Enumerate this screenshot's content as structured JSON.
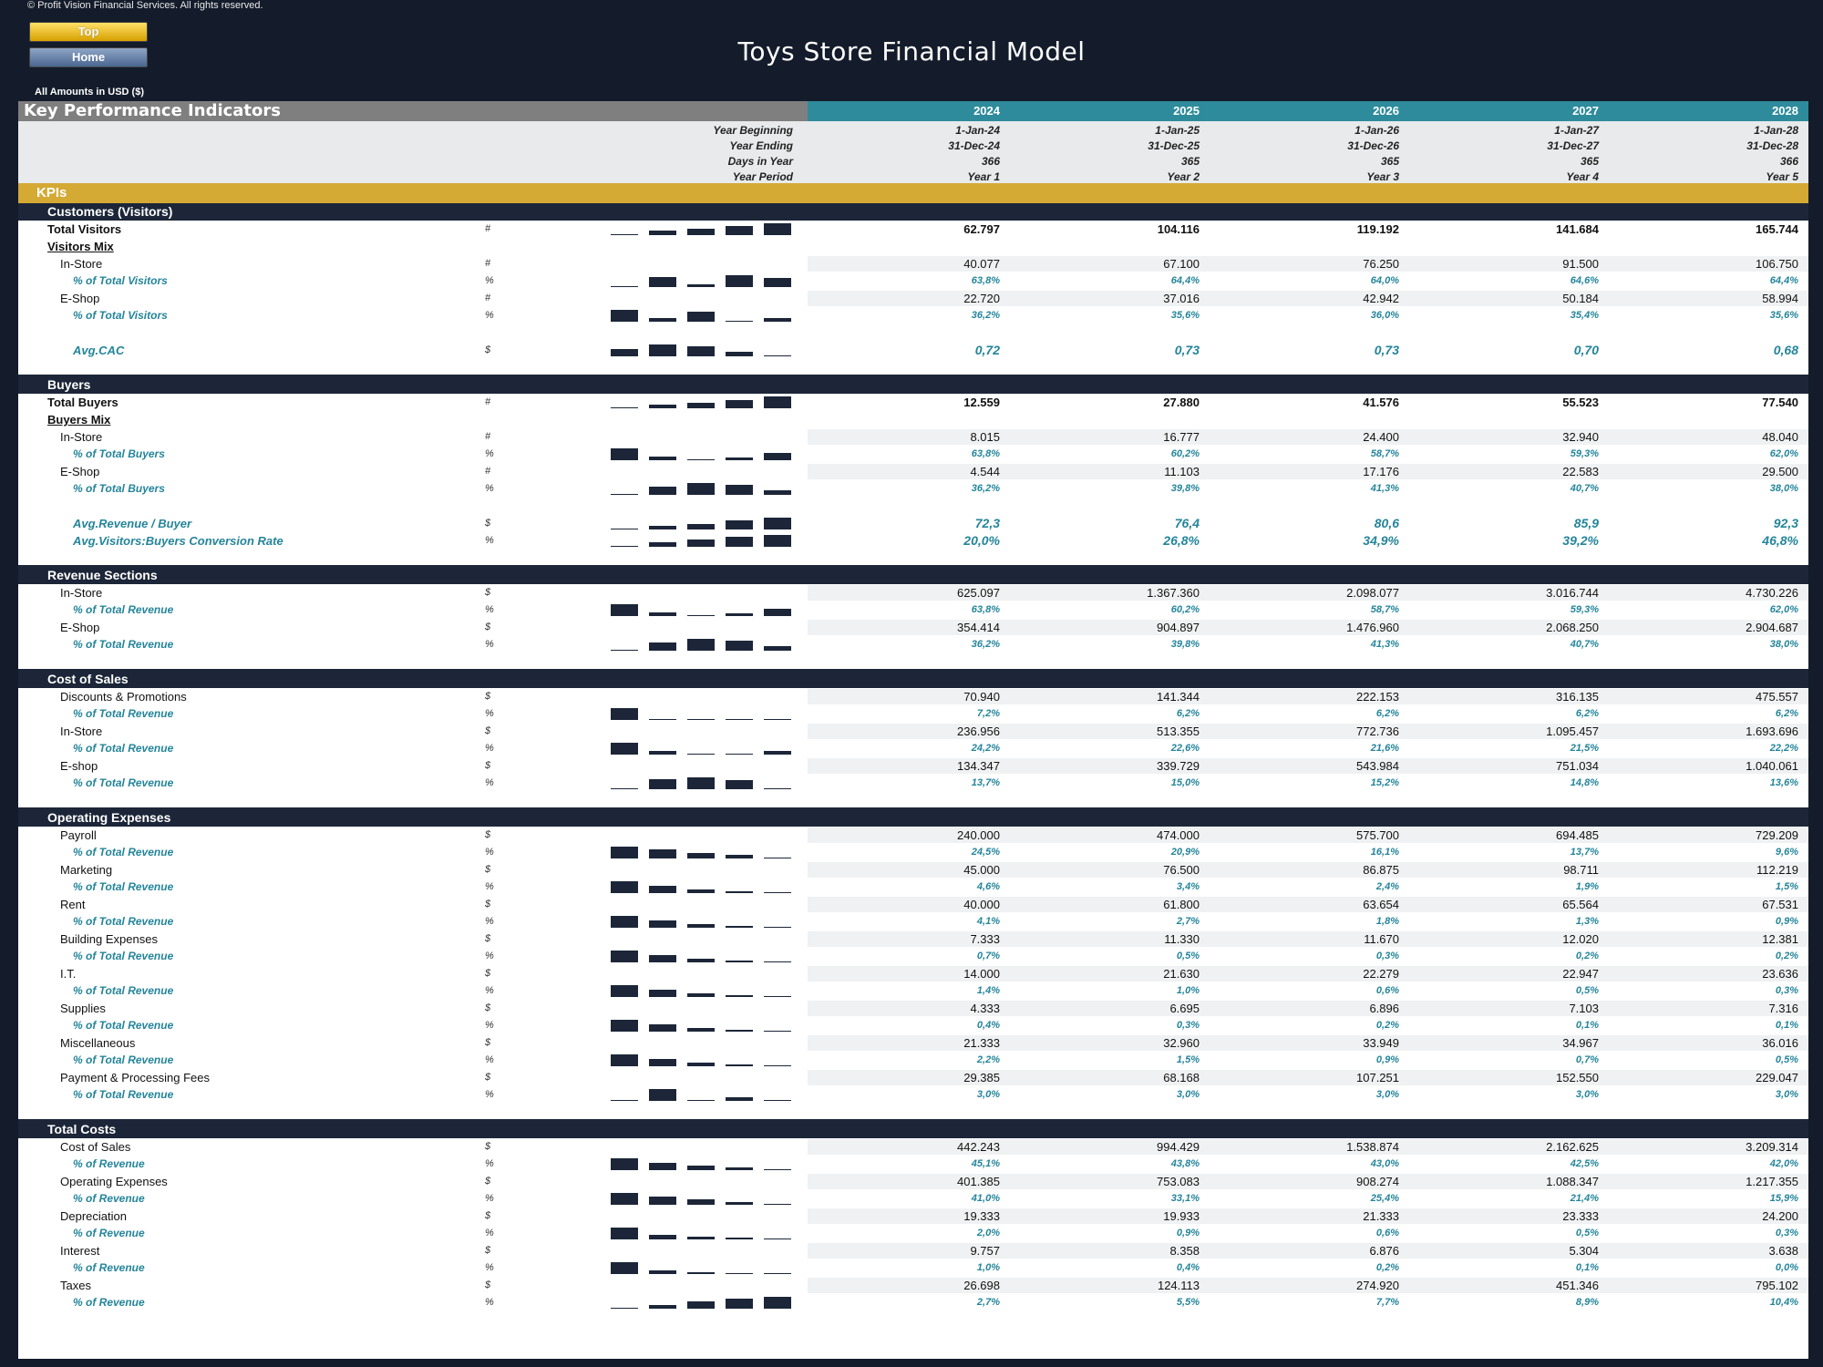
{
  "copyright": "© Profit Vision Financial Services. All rights reserved.",
  "nav": {
    "top_label": "Top",
    "home_label": "Home"
  },
  "app_title": "Toys Store Financial Model",
  "currency_note": "All Amounts in  USD ($)",
  "kpi_title": "Key Performance Indicators",
  "years": [
    "2024",
    "2025",
    "2026",
    "2027",
    "2028"
  ],
  "meta": {
    "labels": [
      "Year Beginning",
      "Year Ending",
      "Days in Year",
      "Year Period"
    ],
    "rows": [
      [
        "1-Jan-24",
        "1-Jan-25",
        "1-Jan-26",
        "1-Jan-27",
        "1-Jan-28"
      ],
      [
        "31-Dec-24",
        "31-Dec-25",
        "31-Dec-26",
        "31-Dec-27",
        "31-Dec-28"
      ],
      [
        "366",
        "365",
        "365",
        "365",
        "366"
      ],
      [
        "Year 1",
        "Year 2",
        "Year 3",
        "Year 4",
        "Year 5"
      ]
    ]
  },
  "kpis_label": "KPIs",
  "rows": [
    {
      "type": "sec",
      "label": "Customers (Visitors)"
    },
    {
      "type": "bold",
      "label": "Total Visitors",
      "unit": "#",
      "values": [
        "62.797",
        "104.116",
        "119.192",
        "141.684",
        "165.744"
      ],
      "spark": [
        0.1,
        0.35,
        0.5,
        0.7,
        0.95
      ]
    },
    {
      "type": "head",
      "label": "Visitors Mix"
    },
    {
      "type": "item",
      "label": "In-Store",
      "unit": "#",
      "values": [
        "40.077",
        "67.100",
        "76.250",
        "91.500",
        "106.750"
      ]
    },
    {
      "type": "pct",
      "label": "% of Total Visitors",
      "unit": "%",
      "values": [
        "63,8%",
        "64,4%",
        "64,0%",
        "64,6%",
        "64,4%"
      ],
      "spark": [
        0.1,
        0.75,
        0.2,
        0.95,
        0.7
      ]
    },
    {
      "type": "item",
      "label": "E-Shop",
      "unit": "#",
      "values": [
        "22.720",
        "37.016",
        "42.942",
        "50.184",
        "58.994"
      ]
    },
    {
      "type": "pct",
      "label": "% of Total Visitors",
      "unit": "%",
      "values": [
        "36,2%",
        "35,6%",
        "36,0%",
        "35,4%",
        "35,6%"
      ],
      "spark": [
        0.95,
        0.3,
        0.8,
        0.1,
        0.3
      ]
    },
    {
      "type": "blank"
    },
    {
      "type": "avg",
      "label": "Avg.CAC",
      "unit": "$",
      "values": [
        "0,72",
        "0,73",
        "0,73",
        "0,70",
        "0,68"
      ],
      "spark": [
        0.6,
        0.95,
        0.8,
        0.35,
        0.1
      ]
    },
    {
      "type": "blank"
    },
    {
      "type": "sec",
      "label": "Buyers"
    },
    {
      "type": "bold",
      "label": "Total Buyers",
      "unit": "#",
      "values": [
        "12.559",
        "27.880",
        "41.576",
        "55.523",
        "77.540"
      ],
      "spark": [
        0.1,
        0.25,
        0.45,
        0.65,
        0.95
      ]
    },
    {
      "type": "head",
      "label": "Buyers Mix"
    },
    {
      "type": "item",
      "label": "In-Store",
      "unit": "#",
      "values": [
        "8.015",
        "16.777",
        "24.400",
        "32.940",
        "48.040"
      ]
    },
    {
      "type": "pct",
      "label": "% of Total Buyers",
      "unit": "%",
      "values": [
        "63,8%",
        "60,2%",
        "58,7%",
        "59,3%",
        "62,0%"
      ],
      "spark": [
        0.95,
        0.3,
        0.1,
        0.2,
        0.6
      ]
    },
    {
      "type": "item",
      "label": "E-Shop",
      "unit": "#",
      "values": [
        "4.544",
        "11.103",
        "17.176",
        "22.583",
        "29.500"
      ]
    },
    {
      "type": "pct",
      "label": "% of Total Buyers",
      "unit": "%",
      "values": [
        "36,2%",
        "39,8%",
        "41,3%",
        "40,7%",
        "38,0%"
      ],
      "spark": [
        0.1,
        0.65,
        0.95,
        0.8,
        0.35
      ]
    },
    {
      "type": "blank"
    },
    {
      "type": "avg",
      "label": "Avg.Revenue / Buyer",
      "unit": "$",
      "values": [
        "72,3",
        "76,4",
        "80,6",
        "85,9",
        "92,3"
      ],
      "spark": [
        0.1,
        0.25,
        0.45,
        0.7,
        0.95
      ]
    },
    {
      "type": "avg",
      "label": "Avg.Visitors:Buyers Conversion Rate",
      "unit": "%",
      "values": [
        "20,0%",
        "26,8%",
        "34,9%",
        "39,2%",
        "46,8%"
      ],
      "spark": [
        0.1,
        0.35,
        0.6,
        0.75,
        0.95
      ]
    },
    {
      "type": "blank"
    },
    {
      "type": "sec",
      "label": "Revenue Sections"
    },
    {
      "type": "item",
      "label": "In-Store",
      "unit": "$",
      "values": [
        "625.097",
        "1.367.360",
        "2.098.077",
        "3.016.744",
        "4.730.226"
      ]
    },
    {
      "type": "pct",
      "label": "% of Total Revenue",
      "unit": "%",
      "values": [
        "63,8%",
        "60,2%",
        "58,7%",
        "59,3%",
        "62,0%"
      ],
      "spark": [
        0.95,
        0.3,
        0.1,
        0.2,
        0.6
      ]
    },
    {
      "type": "item",
      "label": "E-Shop",
      "unit": "$",
      "values": [
        "354.414",
        "904.897",
        "1.476.960",
        "2.068.250",
        "2.904.687"
      ]
    },
    {
      "type": "pct",
      "label": "% of Total Revenue",
      "unit": "%",
      "values": [
        "36,2%",
        "39,8%",
        "41,3%",
        "40,7%",
        "38,0%"
      ],
      "spark": [
        0.1,
        0.65,
        0.95,
        0.8,
        0.35
      ]
    },
    {
      "type": "blank"
    },
    {
      "type": "sec",
      "label": "Cost of Sales"
    },
    {
      "type": "item",
      "label": "Discounts & Promotions",
      "unit": "$",
      "values": [
        "70.940",
        "141.344",
        "222.153",
        "316.135",
        "475.557"
      ]
    },
    {
      "type": "pct",
      "label": "% of Total Revenue",
      "unit": "%",
      "values": [
        "7,2%",
        "6,2%",
        "6,2%",
        "6,2%",
        "6,2%"
      ],
      "spark": [
        0.95,
        0.05,
        0.05,
        0.05,
        0.05
      ]
    },
    {
      "type": "item",
      "label": "In-Store",
      "unit": "$",
      "values": [
        "236.956",
        "513.355",
        "772.736",
        "1.095.457",
        "1.693.696"
      ]
    },
    {
      "type": "pct",
      "label": "% of Total Revenue",
      "unit": "%",
      "values": [
        "24,2%",
        "22,6%",
        "21,6%",
        "21,5%",
        "22,2%"
      ],
      "spark": [
        0.95,
        0.3,
        0.05,
        0.05,
        0.25
      ]
    },
    {
      "type": "item",
      "label": "E-shop",
      "unit": "$",
      "values": [
        "134.347",
        "339.729",
        "543.984",
        "751.034",
        "1.040.061"
      ]
    },
    {
      "type": "pct",
      "label": "% of Total Revenue",
      "unit": "%",
      "values": [
        "13,7%",
        "15,0%",
        "15,2%",
        "14,8%",
        "13,6%"
      ],
      "spark": [
        0.05,
        0.8,
        0.95,
        0.7,
        0.05
      ]
    },
    {
      "type": "blank"
    },
    {
      "type": "sec",
      "label": "Operating Expenses"
    },
    {
      "type": "item",
      "label": "Payroll",
      "unit": "$",
      "values": [
        "240.000",
        "474.000",
        "575.700",
        "694.485",
        "729.209"
      ]
    },
    {
      "type": "pct",
      "label": "% of Total Revenue",
      "unit": "%",
      "values": [
        "24,5%",
        "20,9%",
        "16,1%",
        "13,7%",
        "9,6%"
      ],
      "spark": [
        0.95,
        0.7,
        0.4,
        0.25,
        0.05
      ]
    },
    {
      "type": "item",
      "label": "Marketing",
      "unit": "$",
      "values": [
        "45.000",
        "76.500",
        "86.875",
        "98.711",
        "112.219"
      ]
    },
    {
      "type": "pct",
      "label": "% of Total Revenue",
      "unit": "%",
      "values": [
        "4,6%",
        "3,4%",
        "2,4%",
        "1,9%",
        "1,5%"
      ],
      "spark": [
        0.95,
        0.6,
        0.3,
        0.15,
        0.05
      ]
    },
    {
      "type": "item",
      "label": "Rent",
      "unit": "$",
      "values": [
        "40.000",
        "61.800",
        "63.654",
        "65.564",
        "67.531"
      ]
    },
    {
      "type": "pct",
      "label": "% of Total Revenue",
      "unit": "%",
      "values": [
        "4,1%",
        "2,7%",
        "1,8%",
        "1,3%",
        "0,9%"
      ],
      "spark": [
        0.95,
        0.55,
        0.3,
        0.15,
        0.05
      ]
    },
    {
      "type": "item",
      "label": "Building Expenses",
      "unit": "$",
      "values": [
        "7.333",
        "11.330",
        "11.670",
        "12.020",
        "12.381"
      ]
    },
    {
      "type": "pct",
      "label": "% of Total Revenue",
      "unit": "%",
      "values": [
        "0,7%",
        "0,5%",
        "0,3%",
        "0,2%",
        "0,2%"
      ],
      "spark": [
        0.95,
        0.6,
        0.3,
        0.15,
        0.05
      ]
    },
    {
      "type": "item",
      "label": "I.T.",
      "unit": "$",
      "values": [
        "14.000",
        "21.630",
        "22.279",
        "22.947",
        "23.636"
      ]
    },
    {
      "type": "pct",
      "label": "% of Total Revenue",
      "unit": "%",
      "values": [
        "1,4%",
        "1,0%",
        "0,6%",
        "0,5%",
        "0,3%"
      ],
      "spark": [
        0.95,
        0.6,
        0.3,
        0.15,
        0.05
      ]
    },
    {
      "type": "item",
      "label": "Supplies",
      "unit": "$",
      "values": [
        "4.333",
        "6.695",
        "6.896",
        "7.103",
        "7.316"
      ]
    },
    {
      "type": "pct",
      "label": "% of Total Revenue",
      "unit": "%",
      "values": [
        "0,4%",
        "0,3%",
        "0,2%",
        "0,1%",
        "0,1%"
      ],
      "spark": [
        0.95,
        0.55,
        0.3,
        0.15,
        0.05
      ]
    },
    {
      "type": "item",
      "label": "Miscellaneous",
      "unit": "$",
      "values": [
        "21.333",
        "32.960",
        "33.949",
        "34.967",
        "36.016"
      ]
    },
    {
      "type": "pct",
      "label": "% of Total Revenue",
      "unit": "%",
      "values": [
        "2,2%",
        "1,5%",
        "0,9%",
        "0,7%",
        "0,5%"
      ],
      "spark": [
        0.95,
        0.55,
        0.3,
        0.15,
        0.05
      ]
    },
    {
      "type": "item",
      "label": "Payment & Processing Fees",
      "unit": "$",
      "values": [
        "29.385",
        "68.168",
        "107.251",
        "152.550",
        "229.047"
      ]
    },
    {
      "type": "pct",
      "label": "% of Total Revenue",
      "unit": "%",
      "values": [
        "3,0%",
        "3,0%",
        "3,0%",
        "3,0%",
        "3,0%"
      ],
      "spark": [
        0,
        0.95,
        0,
        0.3,
        0
      ]
    },
    {
      "type": "blank"
    },
    {
      "type": "sec",
      "label": "Total Costs"
    },
    {
      "type": "item",
      "label": "Cost of Sales",
      "unit": "$",
      "values": [
        "442.243",
        "994.429",
        "1.538.874",
        "2.162.625",
        "3.209.314"
      ]
    },
    {
      "type": "pct",
      "label": "% of Revenue",
      "unit": "%",
      "values": [
        "45,1%",
        "43,8%",
        "43,0%",
        "42,5%",
        "42,0%"
      ],
      "spark": [
        0.95,
        0.55,
        0.35,
        0.2,
        0.05
      ]
    },
    {
      "type": "item",
      "label": "Operating Expenses",
      "unit": "$",
      "values": [
        "401.385",
        "753.083",
        "908.274",
        "1.088.347",
        "1.217.355"
      ]
    },
    {
      "type": "pct",
      "label": "% of Revenue",
      "unit": "%",
      "values": [
        "41,0%",
        "33,1%",
        "25,4%",
        "21,4%",
        "15,9%"
      ],
      "spark": [
        0.95,
        0.65,
        0.4,
        0.2,
        0.05
      ]
    },
    {
      "type": "item",
      "label": "Depreciation",
      "unit": "$",
      "values": [
        "19.333",
        "19.933",
        "21.333",
        "23.333",
        "24.200"
      ]
    },
    {
      "type": "pct",
      "label": "% of Revenue",
      "unit": "%",
      "values": [
        "2,0%",
        "0,9%",
        "0,6%",
        "0,5%",
        "0,3%"
      ],
      "spark": [
        0.95,
        0.35,
        0.2,
        0.15,
        0.05
      ]
    },
    {
      "type": "item",
      "label": "Interest",
      "unit": "$",
      "values": [
        "9.757",
        "8.358",
        "6.876",
        "5.304",
        "3.638"
      ]
    },
    {
      "type": "pct",
      "label": "% of Revenue",
      "unit": "%",
      "values": [
        "1,0%",
        "0,4%",
        "0,2%",
        "0,1%",
        "0,0%"
      ],
      "spark": [
        0.95,
        0.3,
        0.15,
        0.1,
        0.05
      ]
    },
    {
      "type": "item",
      "label": "Taxes",
      "unit": "$",
      "values": [
        "26.698",
        "124.113",
        "274.920",
        "451.346",
        "795.102"
      ]
    },
    {
      "type": "pct",
      "label": "% of Revenue",
      "unit": "%",
      "values": [
        "2,7%",
        "5,5%",
        "7,7%",
        "8,9%",
        "10,4%"
      ],
      "spark": [
        0.05,
        0.3,
        0.6,
        0.75,
        0.95
      ]
    }
  ]
}
